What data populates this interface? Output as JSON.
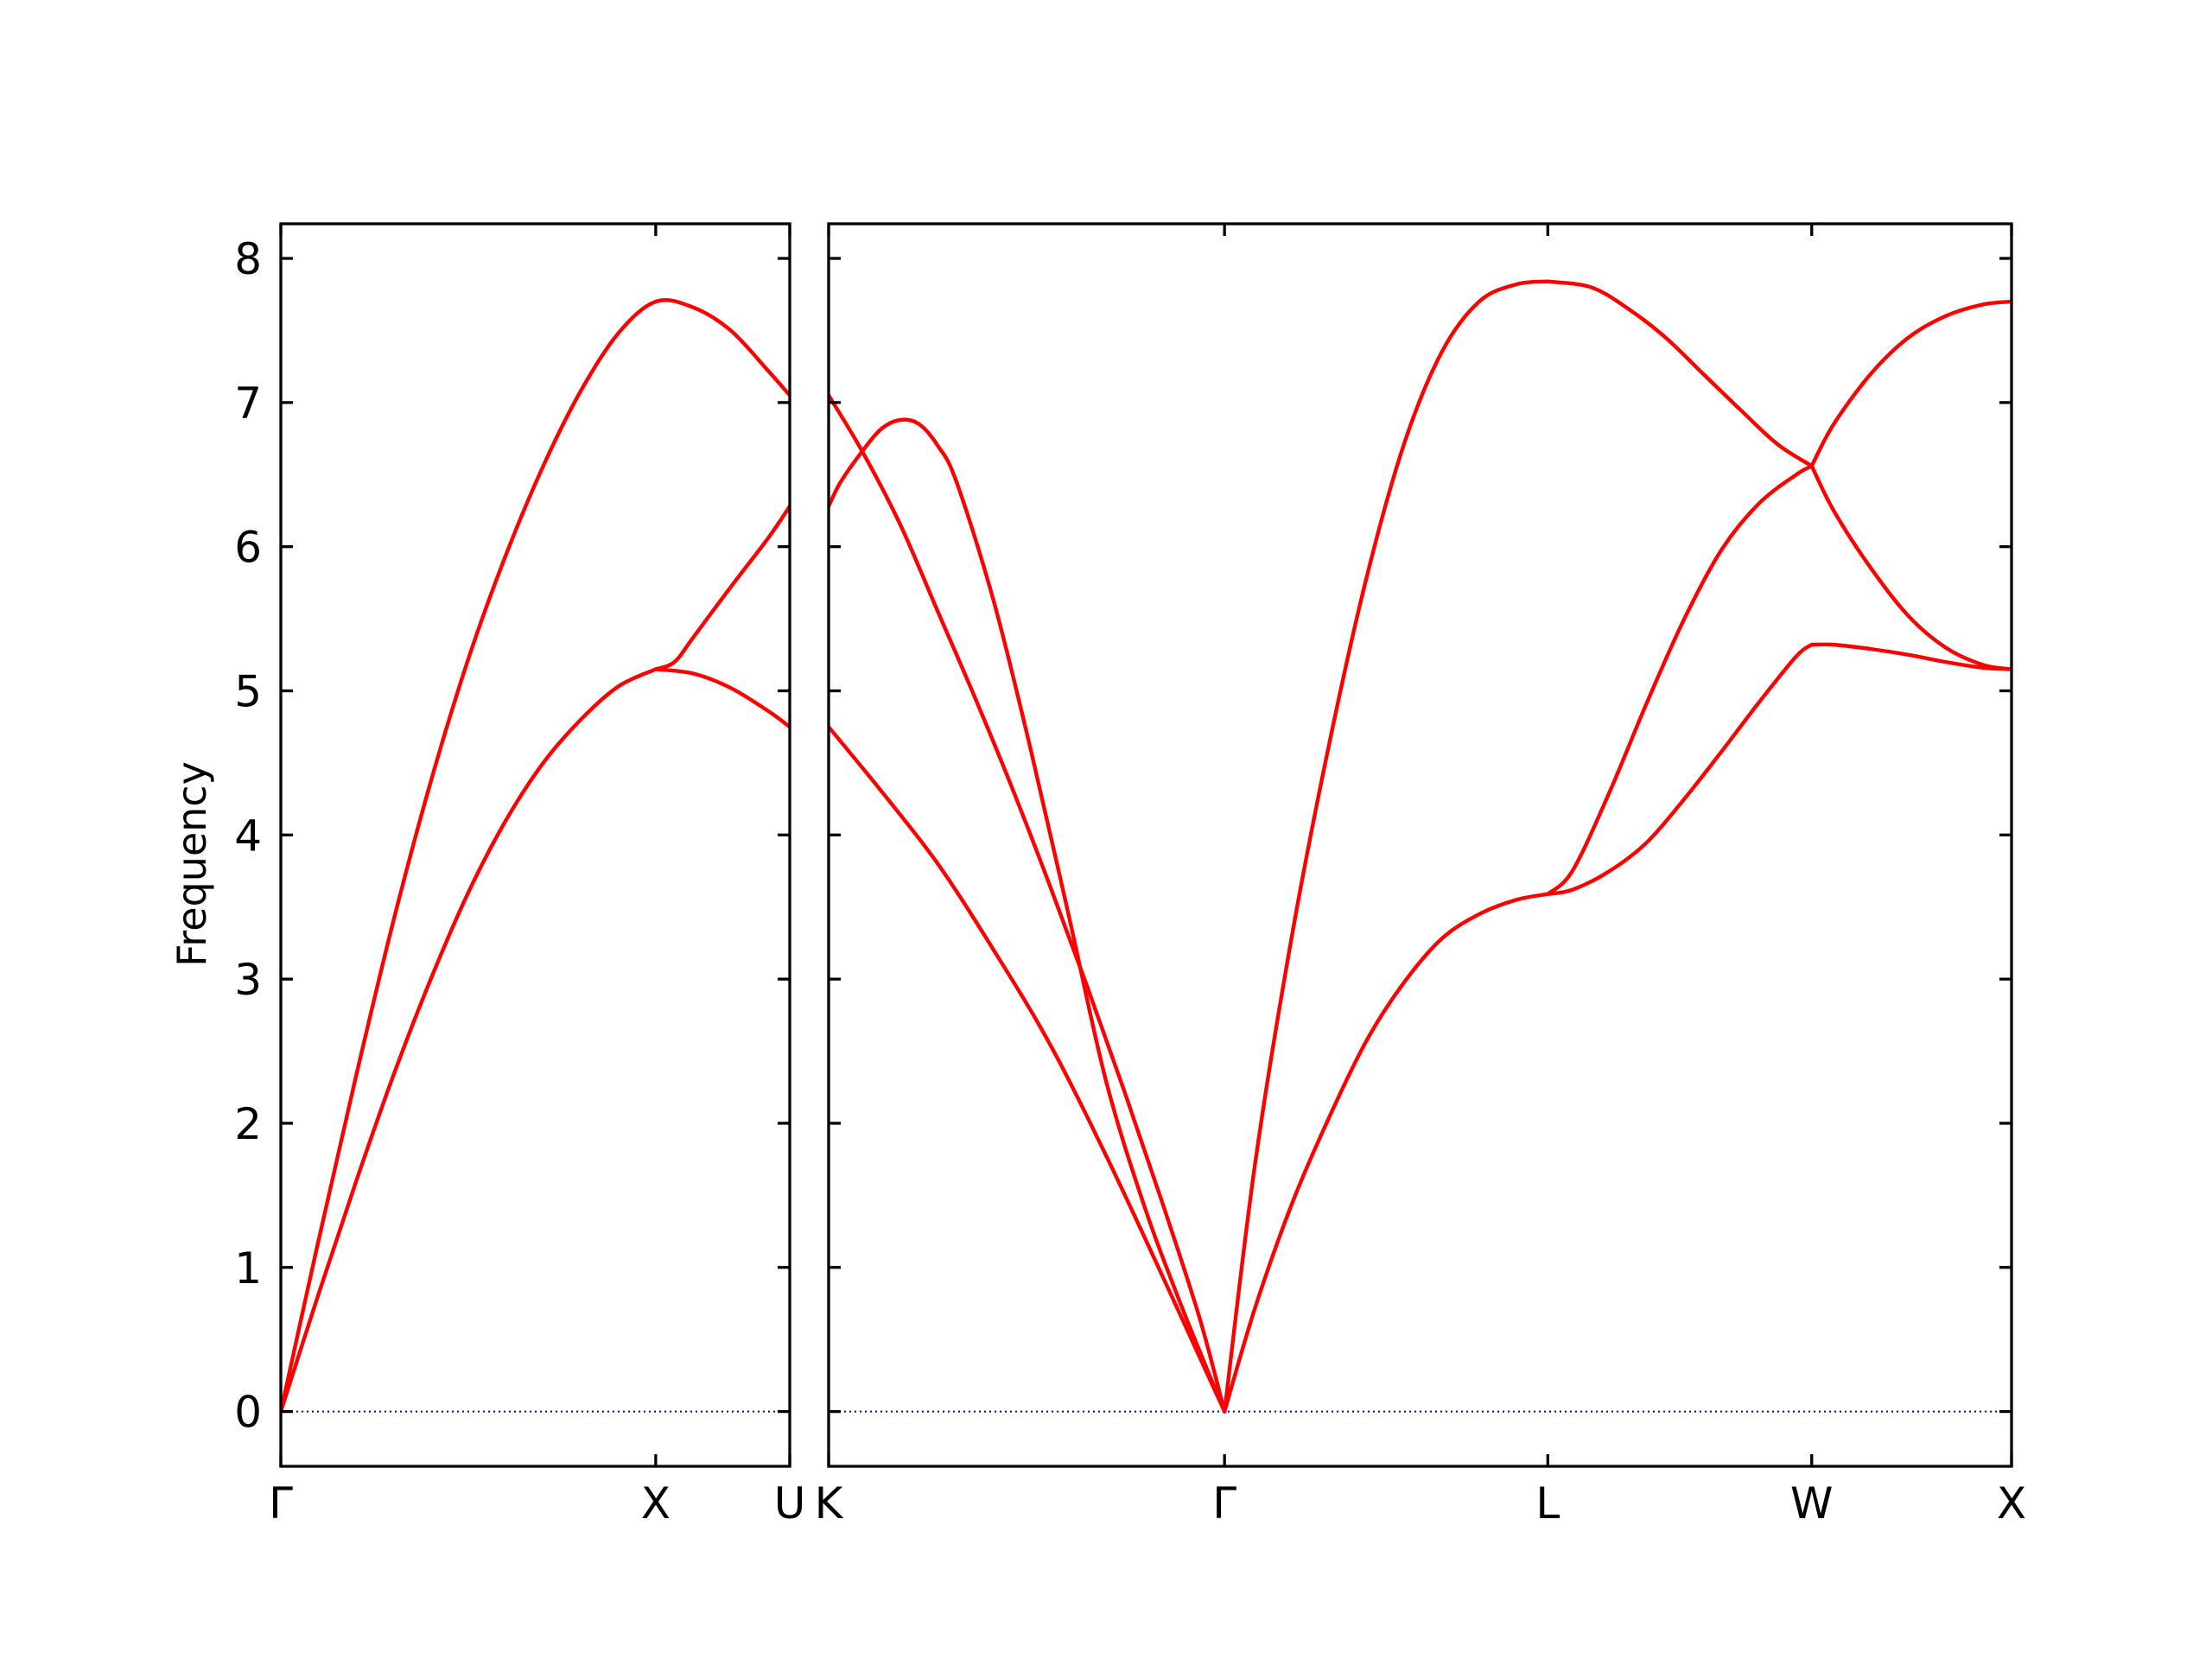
{
  "chart_data": {
    "type": "line",
    "ylabel": "Frequency",
    "ylim": [
      -0.38,
      8.24
    ],
    "yticks": [
      0,
      1,
      2,
      3,
      4,
      5,
      6,
      7,
      8
    ],
    "grid": false,
    "legend": "none",
    "colors": {
      "bands": "#ff0000",
      "zero_line": "#0000aa"
    },
    "panels": [
      {
        "name": "left",
        "xlim": [
          0,
          1.3575
        ],
        "kpoints": [
          {
            "label": "Γ",
            "x": 0
          },
          {
            "label": "X",
            "x": 1.0
          },
          {
            "label": "U",
            "x": 1.3575
          }
        ],
        "series": [
          {
            "x": [
              0,
              0.1,
              0.2,
              0.3,
              0.4,
              0.5,
              0.6,
              0.7,
              0.8,
              0.9,
              1.0
            ],
            "y": [
              0,
              0.81,
              1.59,
              2.33,
              3.0,
              3.6,
              4.1,
              4.5,
              4.8,
              5.03,
              5.15
            ]
          },
          {
            "x": [
              0,
              0.1,
              0.2,
              0.3,
              0.4,
              0.5,
              0.6,
              0.7,
              0.8,
              0.9,
              1.0,
              1.1,
              1.2,
              1.3,
              1.3575
            ],
            "y": [
              0,
              1.18,
              2.32,
              3.4,
              4.37,
              5.22,
              5.94,
              6.56,
              7.08,
              7.48,
              7.7,
              7.66,
              7.5,
              7.22,
              7.05
            ]
          },
          {
            "x": [
              1.0,
              1.1,
              1.2,
              1.3,
              1.3575
            ],
            "y": [
              5.15,
              5.12,
              5.02,
              4.86,
              4.75
            ]
          },
          {
            "x": [
              1.0,
              1.05,
              1.1,
              1.2,
              1.3,
              1.3575
            ],
            "y": [
              5.15,
              5.2,
              5.37,
              5.72,
              6.06,
              6.28
            ]
          }
        ]
      },
      {
        "name": "right",
        "xlim": [
          1.3575,
          4.5265
        ],
        "kpoints": [
          {
            "label": "K",
            "x": 1.3575
          },
          {
            "label": "Γ",
            "x": 2.4181
          },
          {
            "label": "L",
            "x": 3.2841
          },
          {
            "label": "W",
            "x": 3.9912
          },
          {
            "label": "X",
            "x": 4.5265
          }
        ],
        "series": [
          {
            "x": [
              1.3575,
              1.5,
              1.65,
              1.8,
              1.95,
              2.1,
              2.25,
              2.4181
            ],
            "y": [
              4.75,
              4.3,
              3.8,
              3.2,
              2.55,
              1.78,
              0.95,
              0
            ]
          },
          {
            "x": [
              1.3575,
              1.45,
              1.55,
              1.65,
              1.75,
              1.85,
              1.95,
              2.05,
              2.15,
              2.25,
              2.35,
              2.4181
            ],
            "y": [
              7.05,
              6.65,
              6.15,
              5.55,
              4.95,
              4.32,
              3.65,
              2.95,
              2.22,
              1.46,
              0.66,
              0
            ]
          },
          {
            "x": [
              1.3575,
              1.39,
              1.45,
              1.5,
              1.55,
              1.6,
              1.65,
              1.7,
              1.8,
              1.9,
              2.0,
              2.1,
              2.2,
              2.3,
              2.4181
            ],
            "y": [
              6.28,
              6.45,
              6.67,
              6.82,
              6.88,
              6.85,
              6.7,
              6.45,
              5.62,
              4.58,
              3.45,
              2.3,
              1.45,
              0.75,
              0
            ]
          },
          {
            "x": [
              2.4181,
              2.5,
              2.6,
              2.7,
              2.8,
              2.9,
              3.0,
              3.1,
              3.2,
              3.2841
            ],
            "y": [
              0,
              0.72,
              1.45,
              2.05,
              2.58,
              2.98,
              3.28,
              3.45,
              3.55,
              3.59
            ]
          },
          {
            "x": [
              2.4181,
              2.5,
              2.6,
              2.7,
              2.8,
              2.9,
              3.0,
              3.1,
              3.2,
              3.2841
            ],
            "y": [
              0,
              1.72,
              3.32,
              4.65,
              5.8,
              6.72,
              7.35,
              7.7,
              7.82,
              7.84
            ]
          },
          {
            "x": [
              3.2841,
              3.35,
              3.45,
              3.55,
              3.65,
              3.75,
              3.85,
              3.95,
              3.9912
            ],
            "y": [
              3.59,
              3.62,
              3.75,
              3.95,
              4.25,
              4.58,
              4.92,
              5.24,
              5.32
            ]
          },
          {
            "x": [
              3.2841,
              3.35,
              3.45,
              3.55,
              3.65,
              3.75,
              3.85,
              3.95,
              3.9912
            ],
            "y": [
              3.59,
              3.75,
              4.3,
              4.92,
              5.5,
              5.98,
              6.3,
              6.5,
              6.56
            ]
          },
          {
            "x": [
              3.2841,
              3.4,
              3.5,
              3.6,
              3.7,
              3.8,
              3.9,
              3.9912
            ],
            "y": [
              7.84,
              7.8,
              7.65,
              7.45,
              7.2,
              6.95,
              6.71,
              6.56
            ]
          },
          {
            "x": [
              3.9912,
              4.05,
              4.15,
              4.25,
              4.35,
              4.45,
              4.5265
            ],
            "y": [
              5.32,
              5.32,
              5.29,
              5.25,
              5.2,
              5.16,
              5.15
            ]
          },
          {
            "x": [
              3.9912,
              4.05,
              4.15,
              4.25,
              4.35,
              4.45,
              4.5265
            ],
            "y": [
              6.56,
              6.25,
              5.85,
              5.52,
              5.3,
              5.18,
              5.15
            ]
          },
          {
            "x": [
              3.9912,
              4.05,
              4.15,
              4.25,
              4.35,
              4.45,
              4.5265
            ],
            "y": [
              6.56,
              6.85,
              7.2,
              7.45,
              7.6,
              7.68,
              7.7
            ]
          }
        ]
      }
    ]
  }
}
